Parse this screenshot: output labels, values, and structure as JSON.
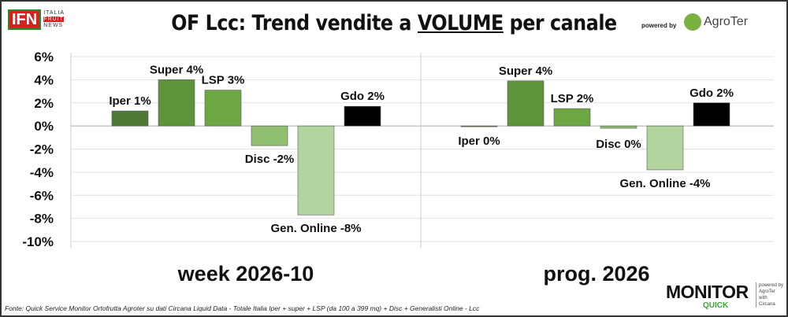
{
  "header": {
    "title_pre": "OF Lcc: Trend vendite a ",
    "title_u": "VOLUME",
    "title_post": " per canale",
    "logo_left": "IFN",
    "logo_left_lines": [
      "ITALIA",
      "FRUIT",
      "NEWS"
    ],
    "powered_by": "powered by",
    "logo_right": "AgroTer"
  },
  "footer": {
    "source": "Fonte: Quick Service Monitor Ortofrutta Agroter su dati Circana Liquid Data - Totale Italia Iper + super + LSP (da 100 a 399 mq) + Disc + Generalisti Online - Lcc",
    "logo_monitor": "MONITOR",
    "logo_quick": "QUICK",
    "logo_side": [
      "powered by",
      "AgroTer",
      "with",
      "Circana"
    ]
  },
  "chart_data": {
    "type": "bar",
    "title": "OF Lcc: Trend vendite a VOLUME per canale",
    "ylim": [
      -10,
      6
    ],
    "yticks": [
      6,
      4,
      2,
      0,
      -2,
      -4,
      -6,
      -8,
      -10
    ],
    "ytick_labels": [
      "6%",
      "4%",
      "2%",
      "0%",
      "-2%",
      "-4%",
      "-6%",
      "-8%",
      "-10%"
    ],
    "grid": true,
    "categories": [
      "Iper",
      "Super",
      "LSP",
      "Disc",
      "Gen. Online",
      "Gdo"
    ],
    "colors": [
      "#4e7a33",
      "#5e9439",
      "#6ca744",
      "#8fbf6f",
      "#b2d49e",
      "#000000"
    ],
    "groups": [
      {
        "name": "week 2026-10",
        "values": [
          1.3,
          4.0,
          3.1,
          -1.7,
          -7.7,
          1.7
        ],
        "labels": [
          "Iper 1%",
          "Super 4%",
          "LSP 3%",
          "Disc -2%",
          "Gen. Online -8%",
          "Gdo 2%"
        ]
      },
      {
        "name": "prog. 2026",
        "values": [
          -0.05,
          3.9,
          1.5,
          -0.2,
          -3.8,
          2.0
        ],
        "labels": [
          "Iper 0%",
          "Super 4%",
          "LSP 2%",
          "Disc 0%",
          "Gen. Online -4%",
          "Gdo 2%"
        ]
      }
    ]
  }
}
